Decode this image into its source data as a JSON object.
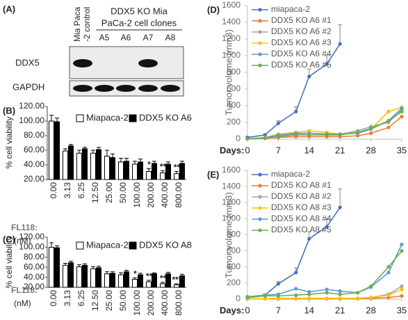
{
  "blot": {
    "label": "(A)",
    "control_header": [
      "Mia Paca",
      "-2 control"
    ],
    "clone_header": [
      "DDX5 KO Mia",
      "PaCa-2 cell clones"
    ],
    "lanes": [
      "A5",
      "A6",
      "A7",
      "A8"
    ],
    "rows": [
      "DDX5",
      "GAPDH"
    ]
  },
  "chart_data": [
    {
      "type": "bar",
      "label": "(B)",
      "y_label": "% cell viability",
      "x_label": "FL118:",
      "x_unit": "(nM)",
      "categories": [
        "0.00",
        "3.13",
        "6.25",
        "12.50",
        "25.00",
        "50.00",
        "100.00",
        "200.00",
        "400.00",
        "800.00"
      ],
      "series": [
        {
          "name": "Miapaca-2",
          "color": "#ffffff",
          "values": [
            100,
            59,
            56,
            56,
            52,
            44,
            41,
            31,
            29,
            28
          ],
          "errors": [
            8,
            3,
            4,
            4,
            8,
            5,
            4,
            4,
            3,
            3
          ]
        },
        {
          "name": "DDX5 KO A6",
          "color": "#000000",
          "values": [
            99,
            66,
            62,
            61,
            50,
            45,
            44,
            42,
            41,
            42
          ],
          "errors": [
            5,
            2,
            2,
            3,
            5,
            4,
            4,
            3,
            3,
            3
          ]
        }
      ],
      "significance": [
        null,
        null,
        null,
        null,
        null,
        null,
        null,
        "*",
        "**",
        "**"
      ],
      "ylim": [
        20,
        120
      ],
      "yticks": [
        {
          "value": 20,
          "label": "20.00"
        },
        {
          "value": 40,
          "label": "40.00"
        },
        {
          "value": 60,
          "label": "60.00"
        },
        {
          "value": 80,
          "label": "80.00"
        },
        {
          "value": 100,
          "label": "100.00"
        },
        {
          "value": 120,
          "label": "120.00"
        }
      ]
    },
    {
      "type": "bar",
      "label": "(C)",
      "y_label": "% cell viability",
      "x_label": "FL118:",
      "x_unit": "(nM)",
      "categories": [
        "0.00",
        "3.13",
        "6.25",
        "12.50",
        "25.00",
        "50.00",
        "100.00",
        "200.00",
        "400.00",
        "800.00"
      ],
      "series": [
        {
          "name": "Miapaca-2",
          "color": "#ffffff",
          "values": [
            100,
            64,
            61,
            57,
            47,
            45,
            36,
            31,
            27,
            25
          ],
          "errors": [
            9,
            4,
            4,
            4,
            4,
            4,
            3,
            3,
            3,
            2
          ]
        },
        {
          "name": "DDX5 KO A8",
          "color": "#000000",
          "values": [
            99,
            69,
            64,
            59,
            48,
            51,
            45,
            47,
            47,
            43
          ],
          "errors": [
            4,
            3,
            3,
            3,
            3,
            3,
            3,
            2,
            3,
            3
          ]
        }
      ],
      "significance": [
        null,
        null,
        null,
        null,
        null,
        null,
        "*",
        "**",
        "**",
        "***"
      ],
      "ylim": [
        20,
        120
      ],
      "yticks": [
        {
          "value": 20,
          "label": "20.00"
        },
        {
          "value": 40,
          "label": "40.00"
        },
        {
          "value": 60,
          "label": "60.00"
        },
        {
          "value": 80,
          "label": "80.00"
        },
        {
          "value": 100,
          "label": "100.00"
        },
        {
          "value": 120,
          "label": "120.00"
        }
      ]
    },
    {
      "type": "line",
      "label": "(D)",
      "y_label": "Tumor volume (mm3)",
      "x_label": "Days:",
      "x": [
        0,
        4,
        7,
        11,
        14,
        18,
        21,
        25,
        28,
        32,
        35
      ],
      "series": [
        {
          "name": "miapaca-2",
          "color": "#4472c4",
          "values": [
            20,
            50,
            190,
            330,
            750,
            900,
            1140,
            null,
            null,
            null,
            null
          ],
          "errors": [
            10,
            15,
            30,
            60,
            90,
            100,
            230,
            null,
            null,
            null,
            null
          ]
        },
        {
          "name": "DDX5 KO A6  #1",
          "color": "#ed7d31",
          "values": [
            5,
            10,
            20,
            30,
            30,
            30,
            30,
            40,
            70,
            140,
            270
          ]
        },
        {
          "name": "DDX5 KO A6  #2",
          "color": "#a5a5a5",
          "values": [
            5,
            15,
            40,
            60,
            70,
            60,
            60,
            100,
            150,
            200,
            350
          ]
        },
        {
          "name": "DDX5 KO A6  #3",
          "color": "#ffc000",
          "values": [
            5,
            20,
            60,
            80,
            100,
            80,
            60,
            80,
            120,
            330,
            380
          ]
        },
        {
          "name": "DDX5 KO A6  #4",
          "color": "#5b9bd5",
          "values": [
            5,
            15,
            50,
            70,
            70,
            60,
            60,
            70,
            120,
            220,
            370
          ]
        },
        {
          "name": "DDX5 KO A6  #5",
          "color": "#70ad47",
          "values": [
            5,
            10,
            30,
            50,
            50,
            50,
            50,
            80,
            130,
            220,
            330
          ]
        }
      ],
      "xlim": [
        0,
        35
      ],
      "xticks": [
        0,
        7,
        14,
        21,
        28,
        35
      ],
      "ylim": [
        0,
        1600
      ],
      "yticks": [
        0,
        200,
        400,
        600,
        800,
        1000,
        1200,
        1400,
        1600
      ]
    },
    {
      "type": "line",
      "label": "(E)",
      "y_label": "Tumor volume (mm3)",
      "x_label": "Days:",
      "x": [
        0,
        4,
        7,
        11,
        14,
        18,
        21,
        25,
        28,
        32,
        35
      ],
      "series": [
        {
          "name": "miapaca-2",
          "color": "#4472c4",
          "values": [
            20,
            50,
            190,
            330,
            750,
            900,
            1140,
            null,
            null,
            null,
            null
          ],
          "errors": [
            10,
            15,
            30,
            60,
            90,
            100,
            230,
            null,
            null,
            null,
            null
          ]
        },
        {
          "name": "DDX5 KO A8  #1",
          "color": "#ed7d31",
          "values": [
            5,
            5,
            5,
            5,
            5,
            5,
            5,
            5,
            10,
            20,
            40
          ]
        },
        {
          "name": "DDX5 KO A8  #2",
          "color": "#a5a5a5",
          "values": [
            5,
            5,
            10,
            10,
            10,
            10,
            10,
            10,
            20,
            60,
            160
          ]
        },
        {
          "name": "DDX5 KO A8  #3",
          "color": "#ffc000",
          "values": [
            5,
            5,
            10,
            10,
            10,
            10,
            10,
            10,
            20,
            50,
            120
          ]
        },
        {
          "name": "DDX5 KO A8  #4",
          "color": "#5b9bd5",
          "values": [
            30,
            50,
            60,
            130,
            90,
            120,
            100,
            80,
            150,
            330,
            680
          ]
        },
        {
          "name": "DDX5 KO A8  #5",
          "color": "#70ad47",
          "values": [
            20,
            40,
            40,
            50,
            60,
            80,
            60,
            80,
            160,
            400,
            600
          ]
        }
      ],
      "xlim": [
        0,
        35
      ],
      "xticks": [
        0,
        7,
        14,
        21,
        28,
        35
      ],
      "ylim": [
        0,
        1600
      ],
      "yticks": [
        0,
        200,
        400,
        600,
        800,
        1000,
        1200,
        1400,
        1600
      ]
    }
  ]
}
